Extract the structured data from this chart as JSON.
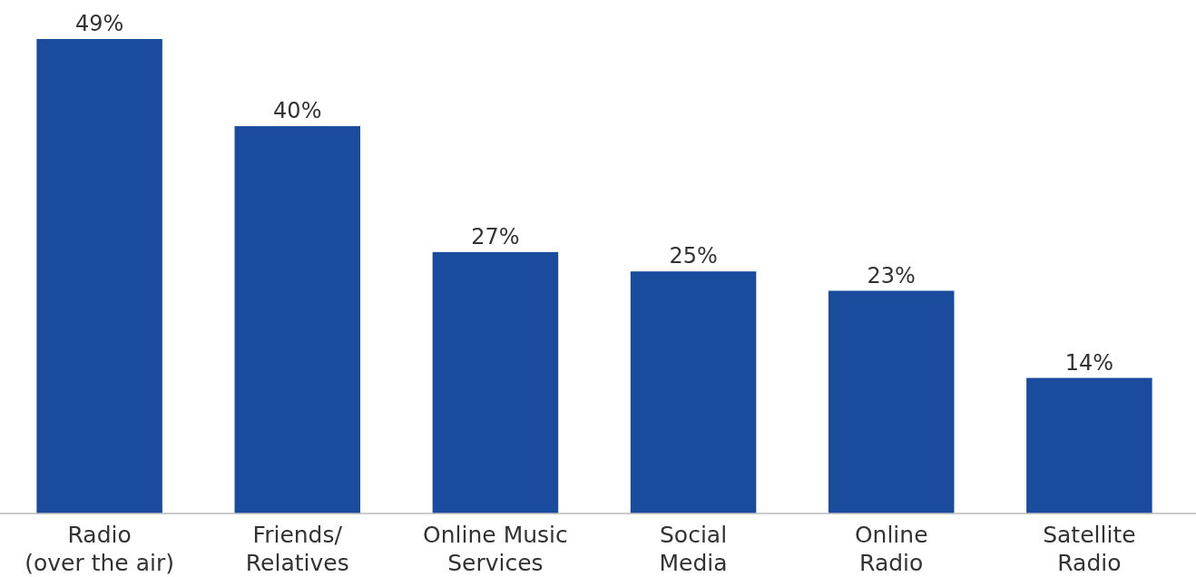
{
  "chart_data": {
    "type": "bar",
    "categories": [
      "Radio\n(over the air)",
      "Friends/\nRelatives",
      "Online Music\nServices",
      "Social\nMedia",
      "Online\nRadio",
      "Satellite\nRadio"
    ],
    "values": [
      49,
      40,
      27,
      25,
      23,
      14
    ],
    "value_labels": [
      "49%",
      "40%",
      "27%",
      "25%",
      "23%",
      "14%"
    ],
    "color": "#1a4b9c"
  }
}
